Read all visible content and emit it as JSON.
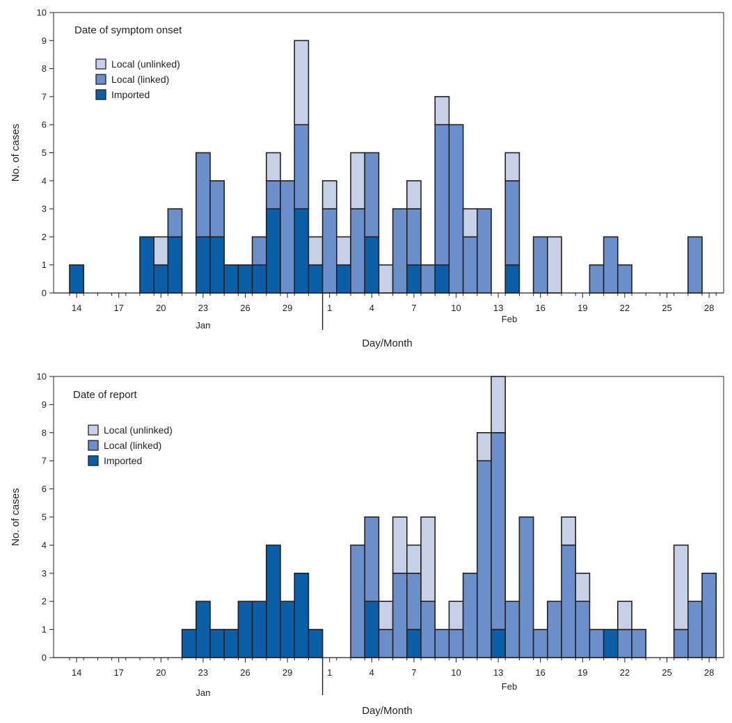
{
  "colors": {
    "imported": "#0b5ea8",
    "local_linked": "#6b8fcb",
    "local_unlinked": "#c6d1e8",
    "outline": "#231f20"
  },
  "chart_data": [
    {
      "type": "bar",
      "stacked": true,
      "title": "Date of symptom onset",
      "xlabel": "Day/Month",
      "ylabel": "No. of cases",
      "ylim": [
        0,
        10
      ],
      "yticks": [
        "0",
        "1",
        "2",
        "3",
        "4",
        "5",
        "6",
        "7",
        "8",
        "9",
        "10"
      ],
      "tick_labels": [
        {
          "date": "Jan 14",
          "label": "14"
        },
        {
          "date": "Jan 17",
          "label": "17"
        },
        {
          "date": "Jan 20",
          "label": "20"
        },
        {
          "date": "Jan 23",
          "label": "23"
        },
        {
          "date": "Jan 26",
          "label": "26"
        },
        {
          "date": "Jan 29",
          "label": "29"
        },
        {
          "date": "Feb 1",
          "label": "1"
        },
        {
          "date": "Feb 4",
          "label": "4"
        },
        {
          "date": "Feb 7",
          "label": "7"
        },
        {
          "date": "Feb 10",
          "label": "10"
        },
        {
          "date": "Feb 13",
          "label": "13"
        },
        {
          "date": "Feb 16",
          "label": "16"
        },
        {
          "date": "Feb 19",
          "label": "19"
        },
        {
          "date": "Feb 22",
          "label": "22"
        },
        {
          "date": "Feb 25",
          "label": "25"
        },
        {
          "date": "Feb 28",
          "label": "28"
        }
      ],
      "month_labels": [
        "Jan",
        "Feb"
      ],
      "legend": [
        "Local (unlinked)",
        "Local (linked)",
        "Imported"
      ],
      "legend_placement": "top-left",
      "categories": [
        "Jan 14",
        "Jan 15",
        "Jan 16",
        "Jan 17",
        "Jan 18",
        "Jan 19",
        "Jan 20",
        "Jan 21",
        "Jan 22",
        "Jan 23",
        "Jan 24",
        "Jan 25",
        "Jan 26",
        "Jan 27",
        "Jan 28",
        "Jan 29",
        "Jan 30",
        "Jan 31",
        "Feb 1",
        "Feb 2",
        "Feb 3",
        "Feb 4",
        "Feb 5",
        "Feb 6",
        "Feb 7",
        "Feb 8",
        "Feb 9",
        "Feb 10",
        "Feb 11",
        "Feb 12",
        "Feb 13",
        "Feb 14",
        "Feb 15",
        "Feb 16",
        "Feb 17",
        "Feb 18",
        "Feb 19",
        "Feb 20",
        "Feb 21",
        "Feb 22",
        "Feb 23",
        "Feb 24",
        "Feb 25",
        "Feb 26",
        "Feb 27",
        "Feb 28"
      ],
      "series": [
        {
          "name": "Imported",
          "values": [
            1,
            0,
            0,
            0,
            0,
            2,
            1,
            2,
            0,
            2,
            2,
            1,
            1,
            1,
            3,
            0,
            3,
            1,
            0,
            1,
            0,
            2,
            0,
            0,
            1,
            0,
            1,
            0,
            0,
            0,
            0,
            1,
            0,
            0,
            0,
            0,
            0,
            0,
            0,
            0,
            0,
            0,
            0,
            0,
            0,
            0
          ]
        },
        {
          "name": "Local (linked)",
          "values": [
            0,
            0,
            0,
            0,
            0,
            0,
            0,
            1,
            0,
            3,
            2,
            0,
            0,
            1,
            1,
            4,
            3,
            0,
            3,
            0,
            3,
            3,
            0,
            3,
            2,
            1,
            5,
            6,
            2,
            3,
            0,
            3,
            0,
            2,
            0,
            0,
            0,
            1,
            2,
            1,
            0,
            0,
            0,
            0,
            2,
            0
          ]
        },
        {
          "name": "Local (unlinked)",
          "values": [
            0,
            0,
            0,
            0,
            0,
            0,
            1,
            0,
            0,
            0,
            0,
            0,
            0,
            0,
            1,
            0,
            3,
            1,
            1,
            1,
            2,
            0,
            1,
            0,
            1,
            0,
            1,
            0,
            1,
            0,
            0,
            1,
            0,
            0,
            2,
            0,
            0,
            0,
            0,
            0,
            0,
            0,
            0,
            0,
            0,
            0
          ]
        }
      ]
    },
    {
      "type": "bar",
      "stacked": true,
      "title": "Date of report",
      "xlabel": "Day/Month",
      "ylabel": "No. of cases",
      "ylim": [
        0,
        10
      ],
      "yticks": [
        "0",
        "1",
        "2",
        "3",
        "4",
        "5",
        "6",
        "7",
        "8",
        "9",
        "10"
      ],
      "tick_labels": [
        {
          "date": "Jan 14",
          "label": "14"
        },
        {
          "date": "Jan 17",
          "label": "17"
        },
        {
          "date": "Jan 20",
          "label": "20"
        },
        {
          "date": "Jan 23",
          "label": "23"
        },
        {
          "date": "Jan 26",
          "label": "26"
        },
        {
          "date": "Jan 29",
          "label": "29"
        },
        {
          "date": "Feb 1",
          "label": "1"
        },
        {
          "date": "Feb 4",
          "label": "4"
        },
        {
          "date": "Feb 7",
          "label": "7"
        },
        {
          "date": "Feb 10",
          "label": "10"
        },
        {
          "date": "Feb 13",
          "label": "13"
        },
        {
          "date": "Feb 16",
          "label": "16"
        },
        {
          "date": "Feb 19",
          "label": "19"
        },
        {
          "date": "Feb 22",
          "label": "22"
        },
        {
          "date": "Feb 25",
          "label": "25"
        },
        {
          "date": "Feb 28",
          "label": "28"
        }
      ],
      "month_labels": [
        "Jan",
        "Feb"
      ],
      "legend": [
        "Local (unlinked)",
        "Local (linked)",
        "Imported"
      ],
      "legend_placement": "top-left",
      "categories": [
        "Jan 14",
        "Jan 15",
        "Jan 16",
        "Jan 17",
        "Jan 18",
        "Jan 19",
        "Jan 20",
        "Jan 21",
        "Jan 22",
        "Jan 23",
        "Jan 24",
        "Jan 25",
        "Jan 26",
        "Jan 27",
        "Jan 28",
        "Jan 29",
        "Jan 30",
        "Jan 31",
        "Feb 1",
        "Feb 2",
        "Feb 3",
        "Feb 4",
        "Feb 5",
        "Feb 6",
        "Feb 7",
        "Feb 8",
        "Feb 9",
        "Feb 10",
        "Feb 11",
        "Feb 12",
        "Feb 13",
        "Feb 14",
        "Feb 15",
        "Feb 16",
        "Feb 17",
        "Feb 18",
        "Feb 19",
        "Feb 20",
        "Feb 21",
        "Feb 22",
        "Feb 23",
        "Feb 24",
        "Feb 25",
        "Feb 26",
        "Feb 27",
        "Feb 28"
      ],
      "series": [
        {
          "name": "Imported",
          "values": [
            0,
            0,
            0,
            0,
            0,
            0,
            0,
            0,
            1,
            2,
            1,
            1,
            2,
            2,
            4,
            2,
            3,
            1,
            0,
            0,
            0,
            2,
            0,
            0,
            1,
            0,
            0,
            0,
            0,
            0,
            1,
            0,
            0,
            0,
            0,
            0,
            0,
            0,
            1,
            0,
            0,
            0,
            0,
            0,
            0,
            0
          ]
        },
        {
          "name": "Local (linked)",
          "values": [
            0,
            0,
            0,
            0,
            0,
            0,
            0,
            0,
            0,
            0,
            0,
            0,
            0,
            0,
            0,
            0,
            0,
            0,
            0,
            0,
            4,
            3,
            1,
            3,
            2,
            2,
            1,
            1,
            3,
            7,
            7,
            2,
            5,
            1,
            2,
            4,
            2,
            1,
            0,
            1,
            1,
            0,
            0,
            1,
            2,
            3
          ]
        },
        {
          "name": "Local (unlinked)",
          "values": [
            0,
            0,
            0,
            0,
            0,
            0,
            0,
            0,
            0,
            0,
            0,
            0,
            0,
            0,
            0,
            0,
            0,
            0,
            0,
            0,
            0,
            0,
            1,
            2,
            1,
            3,
            0,
            1,
            0,
            1,
            2,
            0,
            0,
            0,
            0,
            1,
            1,
            0,
            0,
            1,
            0,
            0,
            0,
            3,
            0,
            0
          ]
        }
      ]
    }
  ]
}
